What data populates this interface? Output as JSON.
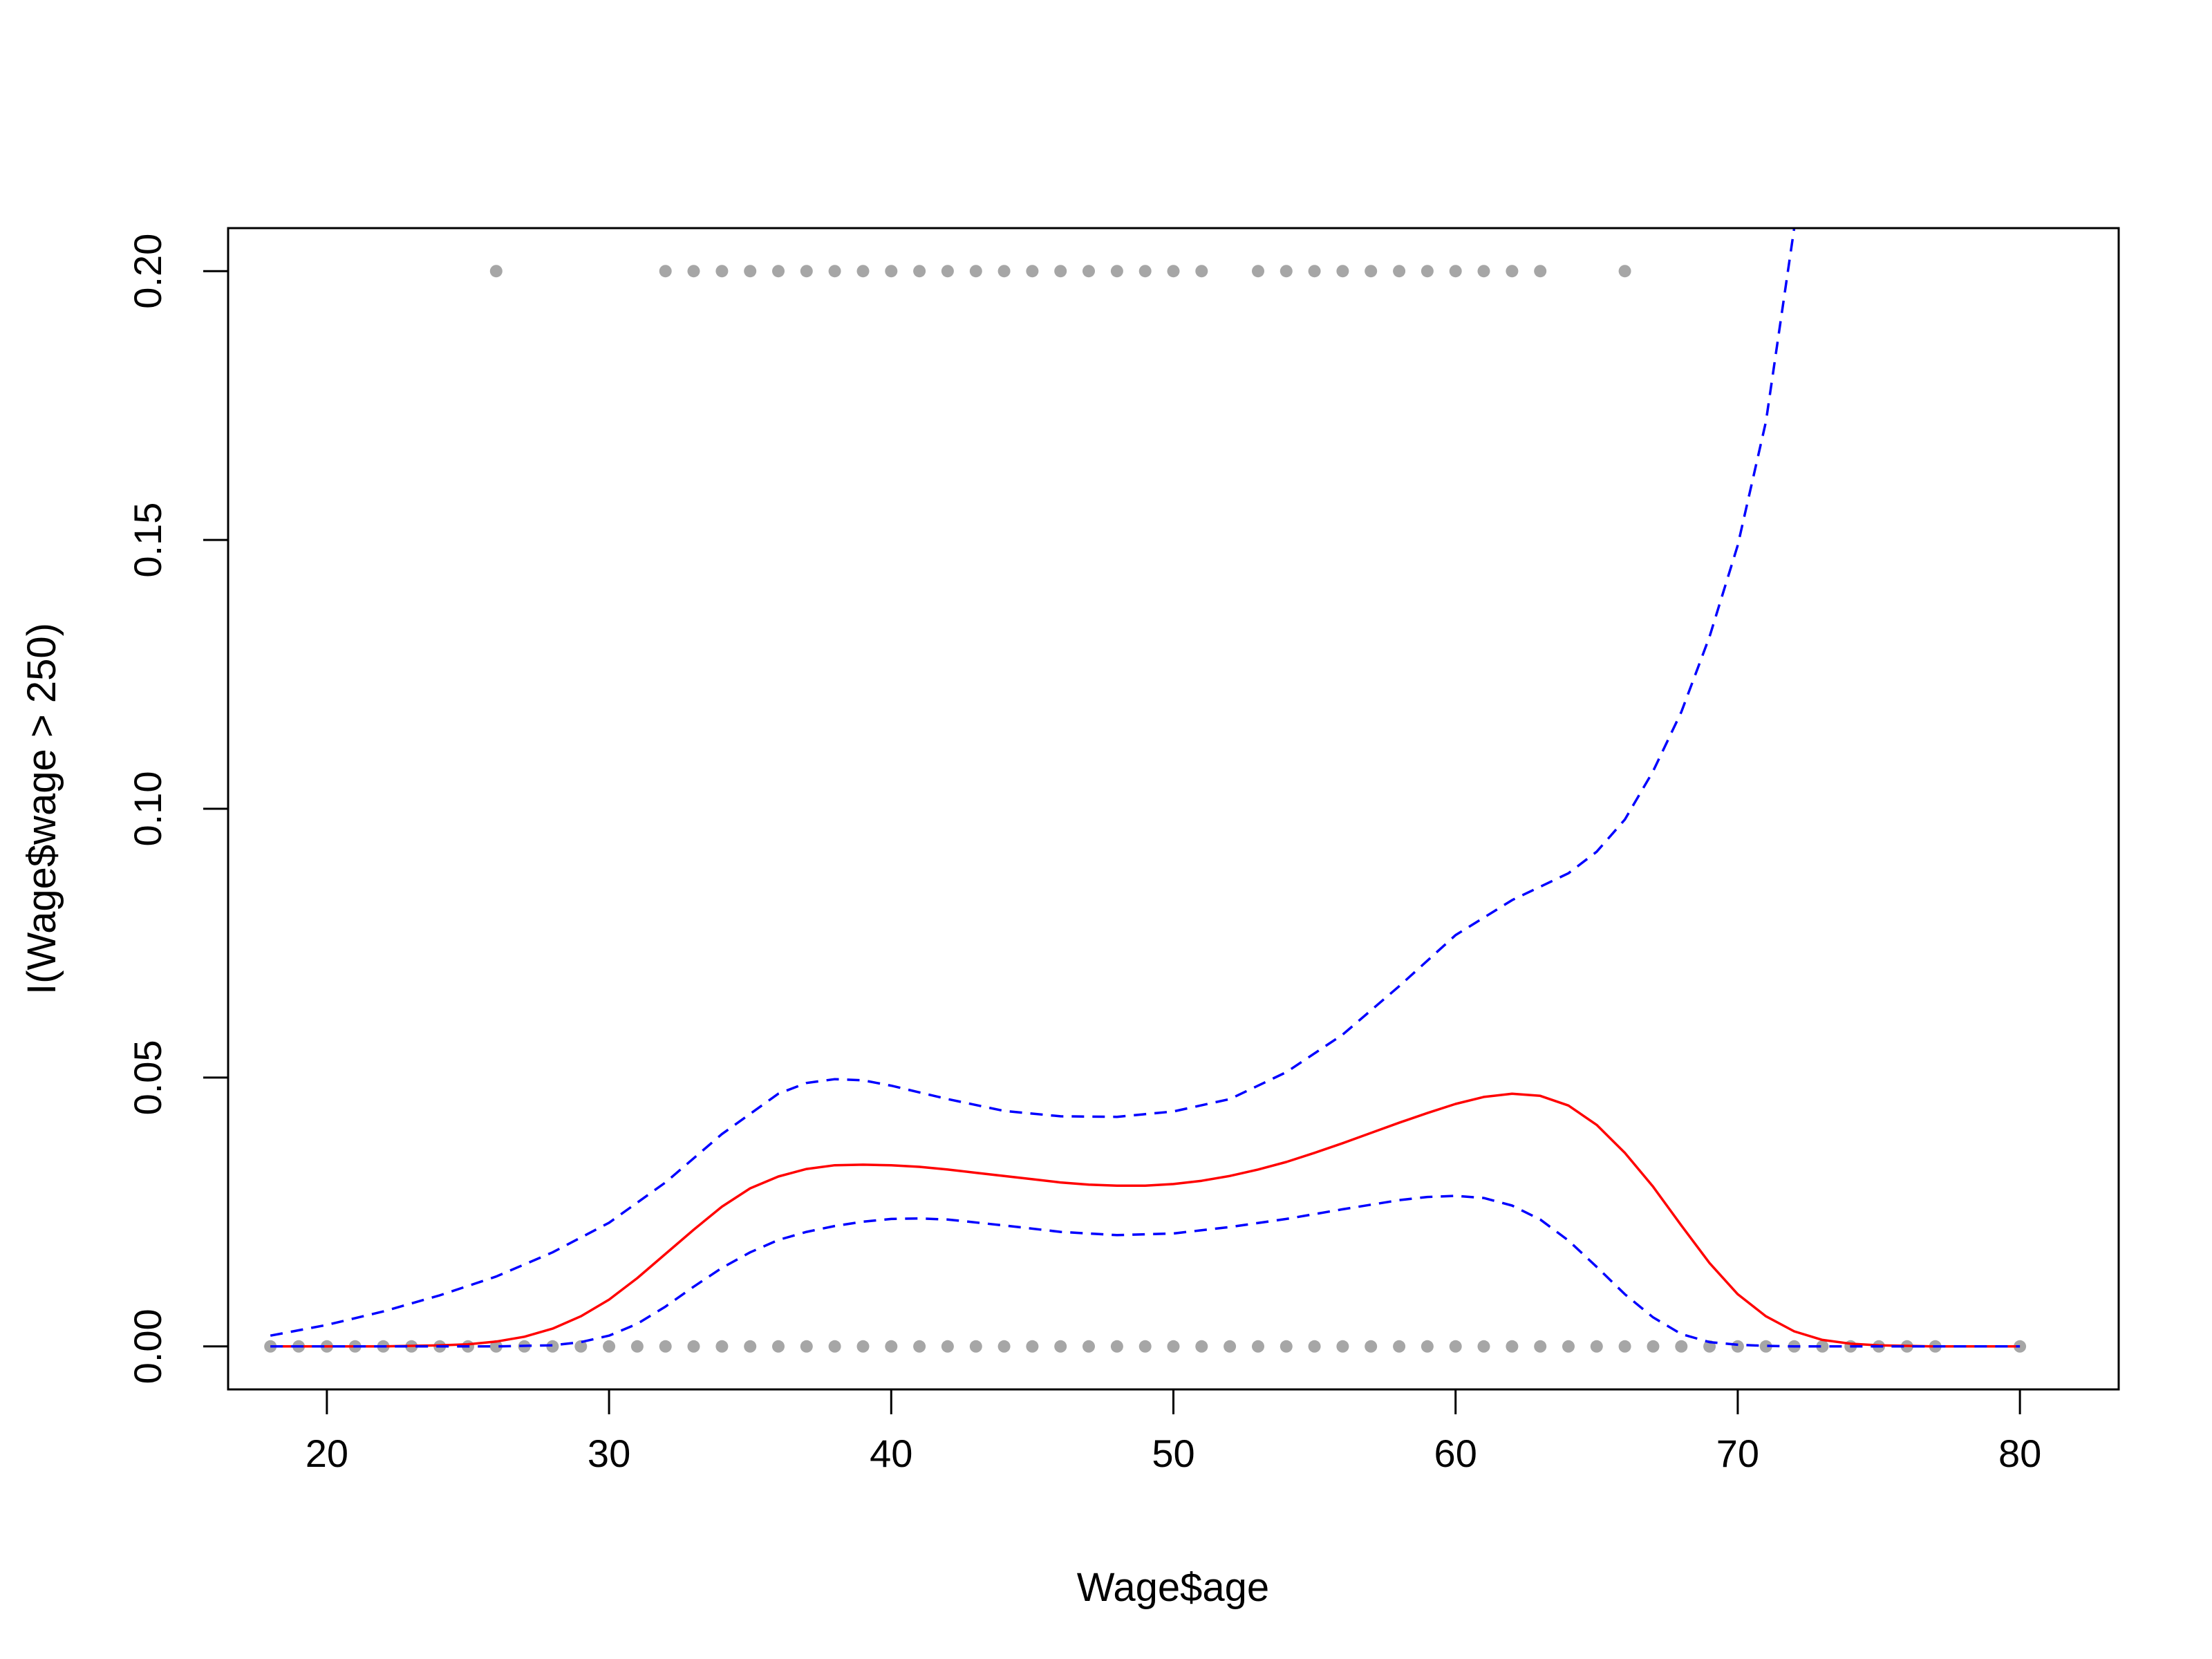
{
  "chart_data": {
    "type": "scatter",
    "title": "",
    "xlabel": "Wage$age",
    "ylabel": "I(Wage$wage > 250)",
    "xlim": [
      16.5,
      83.5
    ],
    "ylim": [
      -0.008,
      0.208
    ],
    "xticks": [
      20,
      30,
      40,
      50,
      60,
      70,
      80
    ],
    "xtick_labels": [
      "20",
      "30",
      "40",
      "50",
      "60",
      "70",
      "80"
    ],
    "yticks": [
      0.0,
      0.05,
      0.1,
      0.15,
      0.2
    ],
    "ytick_labels": [
      "0.00",
      "0.05",
      "0.10",
      "0.15",
      "0.20"
    ],
    "grid": false,
    "points_top": {
      "y": 0.2,
      "x": [
        26,
        32,
        33,
        34,
        35,
        36,
        37,
        38,
        39,
        40,
        41,
        42,
        43,
        44,
        45,
        46,
        47,
        48,
        49,
        50,
        51,
        53,
        54,
        55,
        56,
        57,
        58,
        59,
        60,
        61,
        62,
        63,
        66
      ]
    },
    "points_bottom": {
      "y": 0.0,
      "x": [
        18,
        19,
        20,
        21,
        22,
        23,
        24,
        25,
        26,
        27,
        28,
        29,
        30,
        31,
        32,
        33,
        34,
        35,
        36,
        37,
        38,
        39,
        40,
        41,
        42,
        43,
        44,
        45,
        46,
        47,
        48,
        49,
        50,
        51,
        52,
        53,
        54,
        55,
        56,
        57,
        58,
        59,
        60,
        61,
        62,
        63,
        64,
        65,
        66,
        67,
        68,
        69,
        70,
        71,
        72,
        73,
        74,
        75,
        76,
        77,
        80
      ]
    },
    "point_color": "#a6a6a6",
    "series": [
      {
        "style": "solid",
        "color": "#ff0000",
        "x": [
          18,
          20,
          22,
          24,
          25,
          26,
          27,
          28,
          29,
          30,
          31,
          32,
          33,
          34,
          35,
          36,
          37,
          38,
          39,
          40,
          41,
          42,
          43,
          44,
          45,
          46,
          47,
          48,
          49,
          50,
          51,
          52,
          53,
          54,
          55,
          56,
          57,
          58,
          59,
          60,
          61,
          62,
          63,
          64,
          65,
          66,
          67,
          68,
          69,
          70,
          71,
          72,
          73,
          74,
          75,
          76,
          77,
          78,
          79,
          80
        ],
        "y": [
          0.0,
          0.0,
          0.0,
          0.0002,
          0.0004,
          0.0009,
          0.0018,
          0.0033,
          0.0056,
          0.0087,
          0.0127,
          0.0172,
          0.0217,
          0.026,
          0.0294,
          0.0316,
          0.033,
          0.0337,
          0.0338,
          0.0337,
          0.0334,
          0.0329,
          0.0323,
          0.0317,
          0.0311,
          0.0305,
          0.0301,
          0.0299,
          0.0299,
          0.0302,
          0.0308,
          0.0317,
          0.0329,
          0.0343,
          0.036,
          0.0378,
          0.0397,
          0.0416,
          0.0434,
          0.0451,
          0.0464,
          0.047,
          0.0466,
          0.0448,
          0.0412,
          0.036,
          0.0297,
          0.0225,
          0.0155,
          0.0097,
          0.0056,
          0.0028,
          0.0012,
          0.0005,
          0.0002,
          0.0001,
          0.0,
          0.0,
          0.0,
          0.0
        ]
      },
      {
        "style": "dashed",
        "color": "#0000ff",
        "x": [
          18,
          20,
          22,
          24,
          26,
          28,
          30,
          32,
          34,
          36,
          37,
          38,
          39,
          40,
          42,
          44,
          46,
          48,
          50,
          52,
          54,
          56,
          58,
          60,
          62,
          64,
          65,
          66,
          67,
          68,
          69,
          70,
          71,
          72
        ],
        "y": [
          0.002,
          0.004,
          0.0065,
          0.0095,
          0.013,
          0.0175,
          0.023,
          0.0305,
          0.0395,
          0.047,
          0.049,
          0.0497,
          0.0495,
          0.0485,
          0.046,
          0.0438,
          0.0428,
          0.0427,
          0.0437,
          0.046,
          0.051,
          0.058,
          0.067,
          0.0765,
          0.083,
          0.088,
          0.092,
          0.098,
          0.107,
          0.118,
          0.132,
          0.149,
          0.172,
          0.208
        ]
      },
      {
        "style": "dashed",
        "color": "#0000ff",
        "x": [
          18,
          20,
          22,
          24,
          26,
          28,
          29,
          30,
          31,
          32,
          33,
          34,
          35,
          36,
          37,
          38,
          39,
          40,
          41,
          42,
          44,
          46,
          48,
          50,
          52,
          54,
          56,
          58,
          59,
          60,
          61,
          62,
          63,
          64,
          65,
          66,
          67,
          68,
          69,
          70,
          71,
          72,
          73,
          74,
          75,
          76,
          77,
          78,
          80
        ],
        "y": [
          0.0,
          0.0,
          0.0,
          0.0,
          0.0,
          0.0002,
          0.0008,
          0.002,
          0.0042,
          0.0074,
          0.0111,
          0.0146,
          0.0175,
          0.0198,
          0.0213,
          0.0224,
          0.0232,
          0.0237,
          0.0238,
          0.0236,
          0.0225,
          0.0213,
          0.0207,
          0.021,
          0.0222,
          0.0237,
          0.0255,
          0.0272,
          0.0278,
          0.028,
          0.0276,
          0.0262,
          0.0236,
          0.0197,
          0.0148,
          0.0097,
          0.0054,
          0.0023,
          0.0008,
          0.0003,
          0.0001,
          0.0,
          0.0,
          0.0,
          0.0,
          0.0,
          0.0,
          0.0,
          0.0
        ]
      }
    ]
  }
}
